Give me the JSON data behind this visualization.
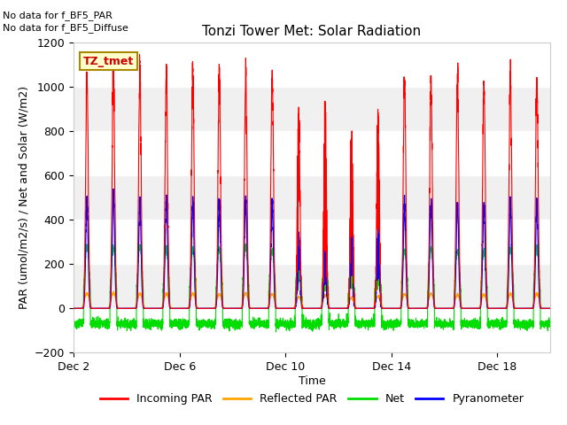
{
  "title": "Tonzi Tower Met: Solar Radiation",
  "xlabel": "Time",
  "ylabel": "PAR (umol/m2/s) / Net and Solar (W/m2)",
  "ylim": [
    -200,
    1200
  ],
  "yticks": [
    -200,
    0,
    200,
    400,
    600,
    800,
    1000,
    1200
  ],
  "xtick_labels": [
    "Dec 2",
    "Dec 6",
    "Dec 10",
    "Dec 14",
    "Dec 18"
  ],
  "xtick_positions": [
    1,
    5,
    9,
    13,
    17
  ],
  "note1": "No data for f_BF5_PAR",
  "note2": "No data for f_BF5_Diffuse",
  "legend_box_label": "TZ_tmet",
  "colors": {
    "incoming_par": "#ff0000",
    "reflected_par": "#ffa500",
    "net": "#00dd00",
    "pyranometer": "#0000ff"
  },
  "legend_labels": [
    "Incoming PAR",
    "Reflected PAR",
    "Net",
    "Pyranometer"
  ],
  "n_days": 18,
  "background_color": "#ffffff",
  "plot_bg": "#f0f0f0",
  "band_color": "#ffffff"
}
